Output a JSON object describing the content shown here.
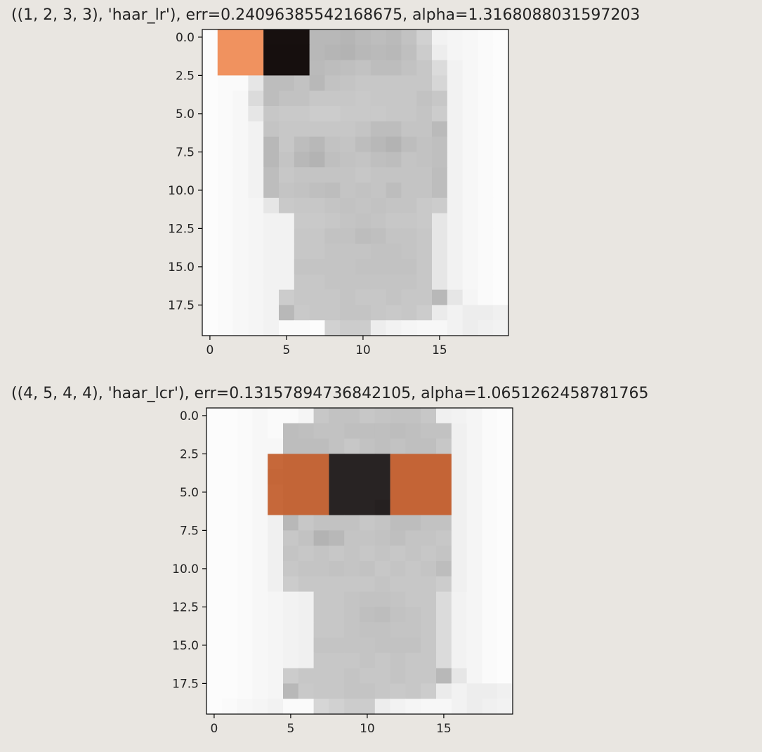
{
  "output": {
    "cells": [
      {
        "title": "((1, 2, 3, 3), 'haar_lr'), err=0.24096385542168675, alpha=1.3168088031597203",
        "feature": {
          "position": [
            1,
            2
          ],
          "size": [
            3,
            3
          ],
          "kind": "haar_lr",
          "err": 0.24096385542168675,
          "alpha": 1.3168088031597203
        }
      },
      {
        "title": "((4, 5, 4, 4), 'haar_lcr'), err=0.13157894736842105, alpha=1.0651262458781765",
        "feature": {
          "position": [
            4,
            5
          ],
          "size": [
            4,
            4
          ],
          "kind": "haar_lcr",
          "err": 0.13157894736842105,
          "alpha": 1.0651262458781765
        }
      }
    ]
  },
  "chart_data": [
    {
      "type": "heatmap",
      "title": "((1, 2, 3, 3), 'haar_lr'), err=0.24096385542168675, alpha=1.3168088031597203",
      "xlabel": "",
      "ylabel": "",
      "shape": [
        20,
        20
      ],
      "colormap": "gray",
      "x_ticks": [
        "0",
        "5",
        "10",
        "15"
      ],
      "x_tick_values": [
        0,
        5,
        10,
        15
      ],
      "y_ticks": [
        "0.0",
        "2.5",
        "5.0",
        "7.5",
        "10.0",
        "12.5",
        "15.0",
        "17.5"
      ],
      "y_tick_values": [
        0,
        2.5,
        5,
        7.5,
        10,
        12.5,
        15,
        17.5
      ],
      "xlim": [
        -0.5,
        19.5
      ],
      "ylim": [
        19.5,
        -0.5
      ],
      "values": [
        [
          0.99,
          0.94,
          0.94,
          0.94,
          0.32,
          0.32,
          0.32,
          0.72,
          0.72,
          0.71,
          0.73,
          0.74,
          0.73,
          0.76,
          0.82,
          0.95,
          0.96,
          0.97,
          0.98,
          0.99
        ],
        [
          0.99,
          0.94,
          0.94,
          0.94,
          0.3,
          0.3,
          0.3,
          0.72,
          0.71,
          0.7,
          0.72,
          0.73,
          0.72,
          0.75,
          0.8,
          0.93,
          0.96,
          0.97,
          0.98,
          0.99
        ],
        [
          0.99,
          0.94,
          0.94,
          0.94,
          0.3,
          0.3,
          0.3,
          0.73,
          0.74,
          0.75,
          0.76,
          0.74,
          0.74,
          0.76,
          0.78,
          0.86,
          0.95,
          0.97,
          0.98,
          0.99
        ],
        [
          0.99,
          0.98,
          0.98,
          0.9,
          0.74,
          0.74,
          0.76,
          0.72,
          0.76,
          0.77,
          0.78,
          0.78,
          0.78,
          0.78,
          0.78,
          0.84,
          0.95,
          0.97,
          0.98,
          0.99
        ],
        [
          0.99,
          0.98,
          0.97,
          0.86,
          0.74,
          0.76,
          0.76,
          0.78,
          0.78,
          0.78,
          0.79,
          0.78,
          0.78,
          0.78,
          0.76,
          0.78,
          0.95,
          0.97,
          0.98,
          0.99
        ],
        [
          0.99,
          0.98,
          0.97,
          0.9,
          0.78,
          0.79,
          0.79,
          0.8,
          0.8,
          0.79,
          0.79,
          0.79,
          0.78,
          0.78,
          0.77,
          0.8,
          0.95,
          0.97,
          0.98,
          0.99
        ],
        [
          0.99,
          0.98,
          0.97,
          0.95,
          0.77,
          0.78,
          0.78,
          0.78,
          0.78,
          0.78,
          0.77,
          0.74,
          0.74,
          0.77,
          0.77,
          0.73,
          0.95,
          0.97,
          0.98,
          0.99
        ],
        [
          0.99,
          0.98,
          0.97,
          0.95,
          0.72,
          0.78,
          0.74,
          0.72,
          0.76,
          0.77,
          0.74,
          0.72,
          0.7,
          0.74,
          0.76,
          0.75,
          0.95,
          0.97,
          0.98,
          0.99
        ],
        [
          0.99,
          0.98,
          0.97,
          0.95,
          0.72,
          0.77,
          0.72,
          0.7,
          0.75,
          0.76,
          0.77,
          0.75,
          0.74,
          0.77,
          0.76,
          0.75,
          0.95,
          0.97,
          0.98,
          0.99
        ],
        [
          0.99,
          0.98,
          0.97,
          0.95,
          0.74,
          0.78,
          0.77,
          0.77,
          0.77,
          0.77,
          0.78,
          0.77,
          0.77,
          0.77,
          0.77,
          0.74,
          0.95,
          0.97,
          0.98,
          0.99
        ],
        [
          0.99,
          0.98,
          0.97,
          0.95,
          0.74,
          0.77,
          0.76,
          0.75,
          0.74,
          0.77,
          0.76,
          0.77,
          0.74,
          0.77,
          0.77,
          0.74,
          0.95,
          0.97,
          0.98,
          0.99
        ],
        [
          0.99,
          0.98,
          0.97,
          0.96,
          0.9,
          0.79,
          0.78,
          0.78,
          0.77,
          0.76,
          0.77,
          0.76,
          0.77,
          0.77,
          0.79,
          0.8,
          0.95,
          0.97,
          0.98,
          0.99
        ],
        [
          0.99,
          0.98,
          0.97,
          0.96,
          0.95,
          0.95,
          0.79,
          0.79,
          0.78,
          0.77,
          0.76,
          0.77,
          0.78,
          0.78,
          0.79,
          0.9,
          0.95,
          0.97,
          0.98,
          0.99
        ],
        [
          0.99,
          0.98,
          0.97,
          0.96,
          0.95,
          0.95,
          0.78,
          0.78,
          0.76,
          0.76,
          0.74,
          0.75,
          0.77,
          0.77,
          0.78,
          0.9,
          0.95,
          0.97,
          0.98,
          0.99
        ],
        [
          0.99,
          0.98,
          0.97,
          0.96,
          0.95,
          0.95,
          0.78,
          0.78,
          0.77,
          0.77,
          0.77,
          0.76,
          0.76,
          0.77,
          0.78,
          0.9,
          0.95,
          0.97,
          0.98,
          0.99
        ],
        [
          0.99,
          0.98,
          0.97,
          0.96,
          0.95,
          0.95,
          0.77,
          0.77,
          0.77,
          0.77,
          0.76,
          0.76,
          0.76,
          0.76,
          0.78,
          0.9,
          0.95,
          0.97,
          0.98,
          0.99
        ],
        [
          0.99,
          0.98,
          0.97,
          0.96,
          0.95,
          0.95,
          0.78,
          0.78,
          0.77,
          0.77,
          0.77,
          0.77,
          0.77,
          0.77,
          0.78,
          0.9,
          0.95,
          0.97,
          0.98,
          0.99
        ],
        [
          0.99,
          0.98,
          0.97,
          0.96,
          0.95,
          0.8,
          0.78,
          0.78,
          0.78,
          0.77,
          0.78,
          0.78,
          0.77,
          0.78,
          0.78,
          0.72,
          0.9,
          0.96,
          0.98,
          0.99
        ],
        [
          0.99,
          0.98,
          0.97,
          0.96,
          0.95,
          0.72,
          0.79,
          0.78,
          0.78,
          0.77,
          0.77,
          0.78,
          0.79,
          0.78,
          0.8,
          0.92,
          0.95,
          0.93,
          0.93,
          0.94
        ],
        [
          0.99,
          0.98,
          0.97,
          0.96,
          0.95,
          0.98,
          0.98,
          0.99,
          0.82,
          0.8,
          0.8,
          0.93,
          0.95,
          0.96,
          0.97,
          0.97,
          0.95,
          0.93,
          0.94,
          0.95
        ]
      ],
      "overlay": {
        "feature": "haar_lr",
        "row_range": [
          0,
          2
        ],
        "regions": [
          {
            "cols": [
              1,
              3
            ],
            "role": "left",
            "color": "#ef8b55"
          },
          {
            "cols": [
              4,
              6
            ],
            "role": "right",
            "color": "#130c0b"
          }
        ]
      }
    },
    {
      "type": "heatmap",
      "title": "((4, 5, 4, 4), 'haar_lcr'), err=0.13157894736842105, alpha=1.0651262458781765",
      "xlabel": "",
      "ylabel": "",
      "shape": [
        20,
        20
      ],
      "colormap": "gray",
      "x_ticks": [
        "0",
        "5",
        "10",
        "15"
      ],
      "x_tick_values": [
        0,
        5,
        10,
        15
      ],
      "y_ticks": [
        "0.0",
        "2.5",
        "5.0",
        "7.5",
        "10.0",
        "12.5",
        "15.0",
        "17.5"
      ],
      "y_tick_values": [
        0,
        2.5,
        5,
        7.5,
        10,
        12.5,
        15,
        17.5
      ],
      "xlim": [
        -0.5,
        19.5
      ],
      "ylim": [
        19.5,
        -0.5
      ],
      "values": [
        [
          0.99,
          0.99,
          0.98,
          0.97,
          0.98,
          0.98,
          0.96,
          0.78,
          0.76,
          0.76,
          0.78,
          0.77,
          0.76,
          0.76,
          0.78,
          0.94,
          0.95,
          0.96,
          0.98,
          0.99
        ],
        [
          0.99,
          0.99,
          0.98,
          0.97,
          0.98,
          0.74,
          0.75,
          0.76,
          0.76,
          0.75,
          0.75,
          0.75,
          0.74,
          0.75,
          0.76,
          0.76,
          0.94,
          0.96,
          0.98,
          0.99
        ],
        [
          0.99,
          0.99,
          0.98,
          0.97,
          0.97,
          0.74,
          0.74,
          0.74,
          0.76,
          0.78,
          0.76,
          0.75,
          0.76,
          0.75,
          0.75,
          0.78,
          0.94,
          0.96,
          0.98,
          0.99
        ],
        [
          0.99,
          0.99,
          0.98,
          0.97,
          0.92,
          0.74,
          0.74,
          0.74,
          0.2,
          0.2,
          0.2,
          0.2,
          0.76,
          0.77,
          0.77,
          0.78,
          0.94,
          0.96,
          0.98,
          0.99
        ],
        [
          0.99,
          0.99,
          0.98,
          0.97,
          0.8,
          0.74,
          0.74,
          0.74,
          0.2,
          0.2,
          0.2,
          0.2,
          0.77,
          0.77,
          0.77,
          0.78,
          0.94,
          0.96,
          0.98,
          0.99
        ],
        [
          0.99,
          0.99,
          0.98,
          0.97,
          0.92,
          0.74,
          0.74,
          0.74,
          0.2,
          0.2,
          0.2,
          0.2,
          0.77,
          0.77,
          0.77,
          0.78,
          0.94,
          0.96,
          0.98,
          0.99
        ],
        [
          0.99,
          0.99,
          0.98,
          0.97,
          0.92,
          0.74,
          0.74,
          0.74,
          0.2,
          0.2,
          0.2,
          0.05,
          0.77,
          0.77,
          0.77,
          0.78,
          0.94,
          0.96,
          0.98,
          0.99
        ],
        [
          0.99,
          0.99,
          0.98,
          0.97,
          0.94,
          0.72,
          0.78,
          0.76,
          0.76,
          0.76,
          0.78,
          0.77,
          0.74,
          0.74,
          0.76,
          0.76,
          0.94,
          0.96,
          0.98,
          0.99
        ],
        [
          0.99,
          0.99,
          0.98,
          0.97,
          0.94,
          0.78,
          0.76,
          0.7,
          0.72,
          0.77,
          0.77,
          0.76,
          0.75,
          0.77,
          0.77,
          0.78,
          0.94,
          0.96,
          0.98,
          0.99
        ],
        [
          0.99,
          0.99,
          0.98,
          0.97,
          0.94,
          0.77,
          0.78,
          0.77,
          0.78,
          0.77,
          0.78,
          0.77,
          0.78,
          0.77,
          0.78,
          0.77,
          0.94,
          0.96,
          0.98,
          0.99
        ],
        [
          0.99,
          0.99,
          0.98,
          0.97,
          0.94,
          0.78,
          0.77,
          0.77,
          0.76,
          0.77,
          0.76,
          0.78,
          0.77,
          0.78,
          0.77,
          0.74,
          0.94,
          0.96,
          0.98,
          0.99
        ],
        [
          0.99,
          0.99,
          0.98,
          0.97,
          0.94,
          0.8,
          0.78,
          0.78,
          0.78,
          0.78,
          0.78,
          0.77,
          0.78,
          0.78,
          0.78,
          0.8,
          0.94,
          0.96,
          0.98,
          0.99
        ],
        [
          0.99,
          0.99,
          0.98,
          0.97,
          0.96,
          0.95,
          0.94,
          0.78,
          0.78,
          0.77,
          0.76,
          0.76,
          0.77,
          0.78,
          0.78,
          0.86,
          0.95,
          0.96,
          0.98,
          0.99
        ],
        [
          0.99,
          0.99,
          0.98,
          0.97,
          0.96,
          0.95,
          0.94,
          0.78,
          0.78,
          0.77,
          0.75,
          0.74,
          0.76,
          0.77,
          0.78,
          0.86,
          0.95,
          0.96,
          0.98,
          0.99
        ],
        [
          0.99,
          0.99,
          0.98,
          0.97,
          0.96,
          0.95,
          0.94,
          0.78,
          0.78,
          0.77,
          0.76,
          0.76,
          0.77,
          0.77,
          0.78,
          0.86,
          0.95,
          0.96,
          0.98,
          0.99
        ],
        [
          0.99,
          0.99,
          0.98,
          0.97,
          0.96,
          0.95,
          0.94,
          0.77,
          0.77,
          0.77,
          0.77,
          0.76,
          0.76,
          0.76,
          0.78,
          0.86,
          0.95,
          0.96,
          0.98,
          0.99
        ],
        [
          0.99,
          0.99,
          0.98,
          0.97,
          0.96,
          0.95,
          0.94,
          0.78,
          0.78,
          0.78,
          0.77,
          0.78,
          0.77,
          0.78,
          0.78,
          0.86,
          0.95,
          0.96,
          0.98,
          0.99
        ],
        [
          0.99,
          0.99,
          0.98,
          0.97,
          0.96,
          0.8,
          0.78,
          0.78,
          0.78,
          0.77,
          0.78,
          0.78,
          0.77,
          0.78,
          0.78,
          0.72,
          0.9,
          0.96,
          0.98,
          0.99
        ],
        [
          0.99,
          0.99,
          0.98,
          0.97,
          0.96,
          0.72,
          0.79,
          0.78,
          0.78,
          0.77,
          0.77,
          0.78,
          0.79,
          0.78,
          0.8,
          0.92,
          0.95,
          0.93,
          0.93,
          0.94
        ],
        [
          0.99,
          0.98,
          0.97,
          0.96,
          0.95,
          0.98,
          0.98,
          0.84,
          0.82,
          0.8,
          0.8,
          0.93,
          0.95,
          0.96,
          0.97,
          0.97,
          0.95,
          0.93,
          0.94,
          0.95
        ]
      ],
      "overlay": {
        "feature": "haar_lcr",
        "row_range": [
          3,
          6
        ],
        "regions": [
          {
            "cols": [
              4,
              7
            ],
            "role": "left",
            "color": "#c4602f"
          },
          {
            "cols": [
              8,
              11
            ],
            "role": "center",
            "color": "#272222"
          },
          {
            "cols": [
              12,
              15
            ],
            "role": "right",
            "color": "#c45e2d"
          }
        ]
      }
    }
  ]
}
